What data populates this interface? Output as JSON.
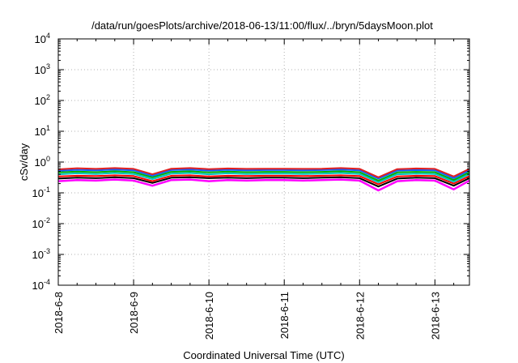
{
  "chart_data": {
    "type": "line",
    "title": "/data/run/goesPlots/archive/2018-06-13/11:00/flux/../bryn/5daysMoon.plot",
    "xlabel": "Coordinated Universal Time (UTC)",
    "ylabel": "cSv/day",
    "yscale": "log",
    "ylim": [
      0.0001,
      10000
    ],
    "xlim": [
      "2018-06-08 00:00",
      "2018-06-13 11:00"
    ],
    "grid": true,
    "x_tick_labels": [
      "2018-6-8",
      "2018-6-9",
      "2018-6-10",
      "2018-6-11",
      "2018-6-12",
      "2018-6-13"
    ],
    "y_ticks": [
      {
        "base": "10",
        "exp": "-4",
        "value": 0.0001
      },
      {
        "base": "10",
        "exp": "-3",
        "value": 0.001
      },
      {
        "base": "10",
        "exp": "-2",
        "value": 0.01
      },
      {
        "base": "10",
        "exp": "-1",
        "value": 0.1
      },
      {
        "base": "10",
        "exp": "0",
        "value": 1
      },
      {
        "base": "10",
        "exp": "1",
        "value": 10
      },
      {
        "base": "10",
        "exp": "2",
        "value": 100
      },
      {
        "base": "10",
        "exp": "3",
        "value": 1000
      },
      {
        "base": "10",
        "exp": "4",
        "value": 10000
      }
    ],
    "x": [
      "2018-06-08 00:00",
      "2018-06-08 06:00",
      "2018-06-08 12:00",
      "2018-06-08 18:00",
      "2018-06-09 00:00",
      "2018-06-09 06:00",
      "2018-06-09 12:00",
      "2018-06-09 18:00",
      "2018-06-10 00:00",
      "2018-06-10 06:00",
      "2018-06-10 12:00",
      "2018-06-10 18:00",
      "2018-06-11 00:00",
      "2018-06-11 06:00",
      "2018-06-11 12:00",
      "2018-06-11 18:00",
      "2018-06-12 00:00",
      "2018-06-12 06:00",
      "2018-06-12 12:00",
      "2018-06-12 18:00",
      "2018-06-13 00:00",
      "2018-06-13 06:00",
      "2018-06-13 11:00"
    ],
    "series": [
      {
        "color": "#ff00ff",
        "values": [
          0.24,
          0.26,
          0.25,
          0.27,
          0.25,
          0.17,
          0.26,
          0.27,
          0.24,
          0.26,
          0.25,
          0.26,
          0.26,
          0.25,
          0.26,
          0.27,
          0.25,
          0.12,
          0.24,
          0.26,
          0.25,
          0.13,
          0.25
        ]
      },
      {
        "color": "#000000",
        "values": [
          0.29,
          0.31,
          0.3,
          0.32,
          0.3,
          0.21,
          0.31,
          0.32,
          0.3,
          0.31,
          0.3,
          0.31,
          0.31,
          0.3,
          0.31,
          0.32,
          0.3,
          0.16,
          0.29,
          0.31,
          0.3,
          0.17,
          0.3
        ]
      },
      {
        "color": "#ff0000",
        "values": [
          0.34,
          0.36,
          0.35,
          0.37,
          0.35,
          0.24,
          0.36,
          0.37,
          0.34,
          0.36,
          0.35,
          0.36,
          0.36,
          0.35,
          0.36,
          0.37,
          0.35,
          0.19,
          0.34,
          0.36,
          0.35,
          0.2,
          0.35
        ]
      },
      {
        "color": "#00c0c0",
        "values": [
          0.4,
          0.43,
          0.41,
          0.44,
          0.41,
          0.28,
          0.42,
          0.44,
          0.4,
          0.43,
          0.41,
          0.42,
          0.42,
          0.41,
          0.42,
          0.44,
          0.41,
          0.22,
          0.4,
          0.42,
          0.41,
          0.23,
          0.41
        ]
      },
      {
        "color": "#00b000",
        "values": [
          0.46,
          0.49,
          0.47,
          0.5,
          0.47,
          0.32,
          0.48,
          0.5,
          0.46,
          0.49,
          0.47,
          0.48,
          0.48,
          0.47,
          0.48,
          0.5,
          0.47,
          0.25,
          0.46,
          0.48,
          0.47,
          0.26,
          0.47
        ]
      },
      {
        "color": "#1060ff",
        "values": [
          0.52,
          0.56,
          0.54,
          0.57,
          0.54,
          0.36,
          0.55,
          0.57,
          0.53,
          0.56,
          0.54,
          0.55,
          0.55,
          0.54,
          0.55,
          0.57,
          0.54,
          0.29,
          0.53,
          0.55,
          0.54,
          0.3,
          0.54
        ]
      },
      {
        "color": "#e02020",
        "values": [
          0.58,
          0.63,
          0.6,
          0.64,
          0.6,
          0.4,
          0.61,
          0.64,
          0.59,
          0.62,
          0.6,
          0.61,
          0.61,
          0.6,
          0.61,
          0.64,
          0.6,
          0.32,
          0.59,
          0.62,
          0.6,
          0.34,
          0.6
        ]
      }
    ]
  }
}
